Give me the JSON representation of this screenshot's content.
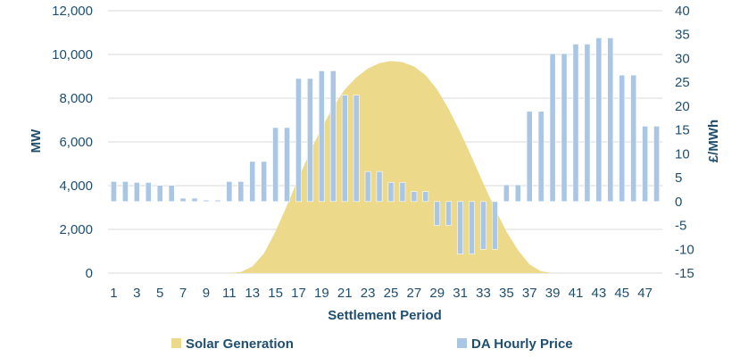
{
  "chart_data": {
    "type": "bar+area",
    "title": "",
    "xlabel": "Settlement Period",
    "ylabel_left": "MW",
    "ylabel_right": "£/MWh",
    "x": [
      1,
      2,
      3,
      4,
      5,
      6,
      7,
      8,
      9,
      10,
      11,
      12,
      13,
      14,
      15,
      16,
      17,
      18,
      19,
      20,
      21,
      22,
      23,
      24,
      25,
      26,
      27,
      28,
      29,
      30,
      31,
      32,
      33,
      34,
      35,
      36,
      37,
      38,
      39,
      40,
      41,
      42,
      43,
      44,
      45,
      46,
      47,
      48
    ],
    "x_tick_labels": [
      "1",
      "3",
      "5",
      "7",
      "9",
      "11",
      "13",
      "15",
      "17",
      "19",
      "21",
      "23",
      "25",
      "27",
      "29",
      "31",
      "33",
      "35",
      "37",
      "39",
      "41",
      "43",
      "45",
      "47"
    ],
    "ylim_left": [
      0,
      12000
    ],
    "ylim_right": [
      -15,
      40
    ],
    "y_ticks_left": [
      "0",
      "2,000",
      "4,000",
      "6,000",
      "8,000",
      "10,000",
      "12,000"
    ],
    "y_ticks_right": [
      "-15",
      "-10",
      "-5",
      "0",
      "5",
      "10",
      "15",
      "20",
      "25",
      "30",
      "35",
      "40"
    ],
    "grid": true,
    "legend_position": "bottom",
    "series": [
      {
        "name": "Solar Generation",
        "type": "area",
        "axis": "left",
        "color": "#ecd98a",
        "values": [
          0,
          0,
          0,
          0,
          0,
          0,
          0,
          0,
          0,
          0,
          0,
          50,
          300,
          900,
          1900,
          3100,
          4350,
          5550,
          6650,
          7600,
          8400,
          8950,
          9350,
          9600,
          9700,
          9650,
          9450,
          9050,
          8400,
          7500,
          6450,
          5300,
          4100,
          2950,
          1900,
          1050,
          400,
          80,
          0,
          0,
          0,
          0,
          0,
          0,
          0,
          0,
          0,
          0
        ]
      },
      {
        "name": "DA Hourly Price",
        "type": "bar",
        "axis": "right",
        "color": "#a9c6e5",
        "values": [
          4.2,
          4.2,
          4.0,
          4.0,
          3.4,
          3.4,
          0.7,
          0.7,
          0.3,
          0.3,
          4.2,
          4.2,
          8.4,
          8.4,
          15.5,
          15.5,
          25.8,
          25.8,
          27.4,
          27.4,
          22.3,
          22.3,
          6.3,
          6.3,
          4.0,
          4.0,
          2.1,
          2.1,
          -5.0,
          -5.0,
          -11.0,
          -11.0,
          -10.0,
          -10.0,
          3.5,
          3.5,
          18.9,
          18.9,
          31.0,
          31.0,
          33.0,
          33.0,
          34.3,
          34.3,
          26.5,
          26.5,
          15.8,
          15.8
        ]
      }
    ]
  }
}
